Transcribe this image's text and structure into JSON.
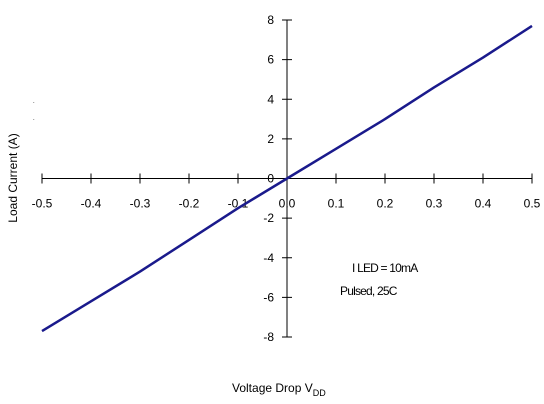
{
  "chart_data": {
    "type": "line",
    "title": "",
    "xlabel": "Voltage Drop V",
    "xlabel_subscript": "DD",
    "ylabel": "Load Current (A)",
    "xlim": [
      -0.5,
      0.5
    ],
    "ylim": [
      -8,
      8
    ],
    "x_ticks": [
      -0.5,
      -0.4,
      -0.3,
      -0.2,
      -0.1,
      0.0,
      0.1,
      0.2,
      0.3,
      0.4,
      0.5
    ],
    "x_tick_labels": [
      "-0.5",
      "-0.4",
      "-0.3",
      "-0.2",
      "-0.1",
      "0.0",
      "0.1",
      "0.2",
      "0.3",
      "0.4",
      "0.5"
    ],
    "y_ticks": [
      -8,
      -6,
      -4,
      -2,
      0,
      2,
      4,
      6,
      8
    ],
    "y_tick_labels": [
      "-8",
      "-6",
      "-4",
      "-2",
      "0",
      "2",
      "4",
      "6",
      "8"
    ],
    "grid": false,
    "series": [
      {
        "color": "#1a1a8c",
        "x": [
          -0.5,
          -0.4,
          -0.3,
          -0.2,
          -0.1,
          0.0,
          0.1,
          0.2,
          0.3,
          0.4,
          0.5
        ],
        "y": [
          -7.7,
          -6.2,
          -4.7,
          -3.1,
          -1.5,
          0.0,
          1.5,
          3.0,
          4.6,
          6.1,
          7.7
        ]
      }
    ],
    "annotations": [
      "I LED = 10mA",
      "Pulsed, 25C"
    ]
  }
}
